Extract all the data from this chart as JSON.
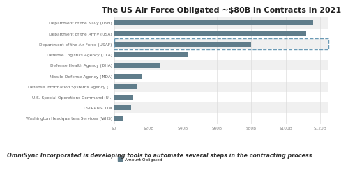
{
  "title": "The US Air Force Obligated ~$80B in Contracts in 2021",
  "subtitle": "OmniSync Incorporated is developing tools to automate several steps in the contracting process",
  "categories": [
    "Department of the Navy (USN)",
    "Department of the Army (USA)",
    "Department of the Air Force (USAF)",
    "Defense Logistics Agency (DLA)",
    "Defense Health Agency (DHA)",
    "Missile Defense Agency (MDA)",
    "Defense Information Systems Agency (...",
    "U.S. Special Operations Command (U...",
    "USTRANSCOM",
    "Washington Headquarters Services (WHS)"
  ],
  "values": [
    116,
    112,
    80,
    43,
    27,
    16,
    13,
    11,
    10,
    5
  ],
  "bar_color": "#607d8b",
  "highlight_index": 2,
  "highlight_box_color": "#6a9ab5",
  "background_color": "#ffffff",
  "row_alt_color": "#f0f0f0",
  "row_main_color": "#ffffff",
  "legend_label": "Amount Obligated",
  "x_ticks": [
    0,
    20,
    40,
    60,
    80,
    100,
    120
  ],
  "x_tick_labels": [
    "$0",
    "$20B",
    "$40B",
    "$60B",
    "$80B",
    "$100B",
    "$120B"
  ],
  "xlim": [
    0,
    125
  ],
  "title_fontsize": 8,
  "label_fontsize": 4.2,
  "tick_fontsize": 4.2,
  "subtitle_fontsize": 5.8
}
